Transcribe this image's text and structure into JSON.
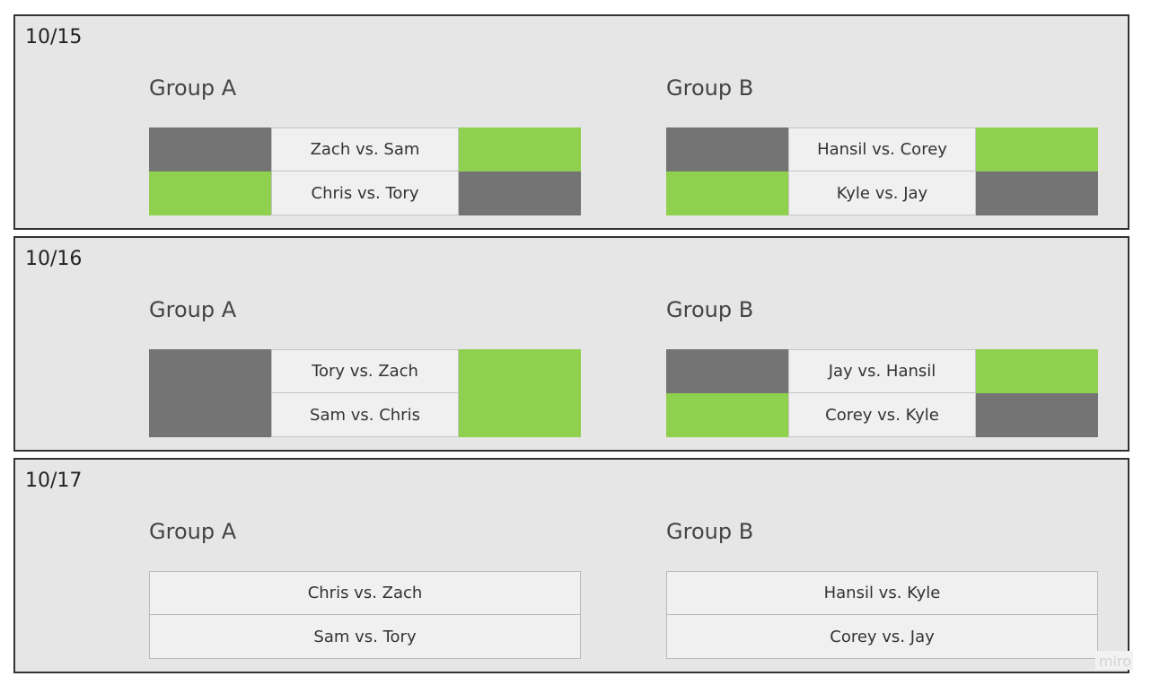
{
  "colors": {
    "gray": "#747474",
    "green": "#8fd14f",
    "panel": "#e6e6e6",
    "cell": "#f0f0f0"
  },
  "days": [
    {
      "date": "10/15",
      "groups": [
        {
          "title": "Group A",
          "matches": [
            {
              "label": "Zach vs. Sam",
              "left": "gray",
              "right": "green"
            },
            {
              "label": "Chris vs. Tory",
              "left": "green",
              "right": "gray"
            }
          ]
        },
        {
          "title": "Group B",
          "matches": [
            {
              "label": "Hansil vs. Corey",
              "left": "gray",
              "right": "green"
            },
            {
              "label": "Kyle vs. Jay",
              "left": "green",
              "right": "gray"
            }
          ]
        }
      ]
    },
    {
      "date": "10/16",
      "groups": [
        {
          "title": "Group A",
          "matches": [
            {
              "label": "Tory vs. Zach",
              "left": "gray",
              "right": "green"
            },
            {
              "label": "Sam vs. Chris",
              "left": "gray",
              "right": "green"
            }
          ]
        },
        {
          "title": "Group B",
          "matches": [
            {
              "label": "Jay vs. Hansil",
              "left": "gray",
              "right": "green"
            },
            {
              "label": "Corey vs. Kyle",
              "left": "green",
              "right": "gray"
            }
          ]
        }
      ]
    },
    {
      "date": "10/17",
      "groups": [
        {
          "title": "Group A",
          "matches": [
            {
              "label": "Chris vs. Zach",
              "left": "none",
              "right": "none"
            },
            {
              "label": "Sam vs. Tory",
              "left": "none",
              "right": "none"
            }
          ]
        },
        {
          "title": "Group B",
          "matches": [
            {
              "label": "Hansil vs. Kyle",
              "left": "none",
              "right": "none"
            },
            {
              "label": "Corey vs. Jay",
              "left": "none",
              "right": "none"
            }
          ]
        }
      ]
    }
  ],
  "watermark": "miro"
}
